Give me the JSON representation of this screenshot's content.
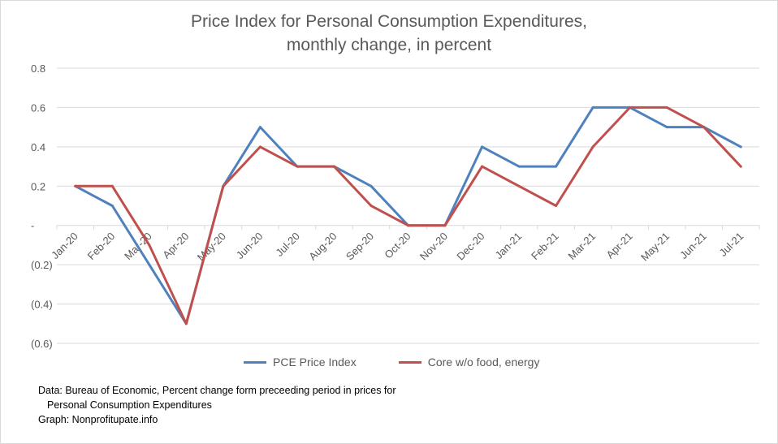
{
  "title_line1": "Price Index for Personal Consumption Expenditures,",
  "title_line2": "monthly change, in percent",
  "source": {
    "line1": "Data: Bureau of Economic, Percent change form preceeding period in prices for",
    "line2": "Personal Consumption Expenditures",
    "line3": "Graph:  Nonprofitupate.info"
  },
  "chart_data": {
    "type": "line",
    "title": "Price Index for Personal Consumption Expenditures, monthly change, in percent",
    "categories": [
      "Jan-20",
      "Feb-20",
      "Mar-20",
      "Apr-20",
      "May-20",
      "Jun-20",
      "Jul-20",
      "Aug-20",
      "Sep-20",
      "Oct-20",
      "Nov-20",
      "Dec-20",
      "Jan-21",
      "Feb-21",
      "Mar-21",
      "Apr-21",
      "May-21",
      "Jun-21",
      "Jul-21"
    ],
    "series": [
      {
        "name": "PCE Price Index",
        "color": "#4f81bd",
        "values": [
          0.2,
          0.1,
          -0.2,
          -0.5,
          0.2,
          0.5,
          0.3,
          0.3,
          0.2,
          0.0,
          0.0,
          0.4,
          0.3,
          0.3,
          0.6,
          0.6,
          0.5,
          0.5,
          0.4
        ]
      },
      {
        "name": "Core w/o food, energy",
        "color": "#c0504d",
        "values": [
          0.2,
          0.2,
          -0.1,
          -0.5,
          0.2,
          0.4,
          0.3,
          0.3,
          0.1,
          0.0,
          0.0,
          0.3,
          0.2,
          0.1,
          0.4,
          0.6,
          0.6,
          0.5,
          0.3
        ]
      }
    ],
    "ylim": [
      -0.6,
      0.8
    ],
    "yticks": [
      0.8,
      0.6,
      0.4,
      0.2,
      0.0,
      -0.2,
      -0.4,
      -0.6
    ],
    "ytick_labels": [
      "0.8",
      "0.6",
      "0.4",
      "0.2",
      "-",
      "(0.2)",
      "(0.4)",
      "(0.6)"
    ],
    "grid": true,
    "legend_position": "bottom"
  }
}
